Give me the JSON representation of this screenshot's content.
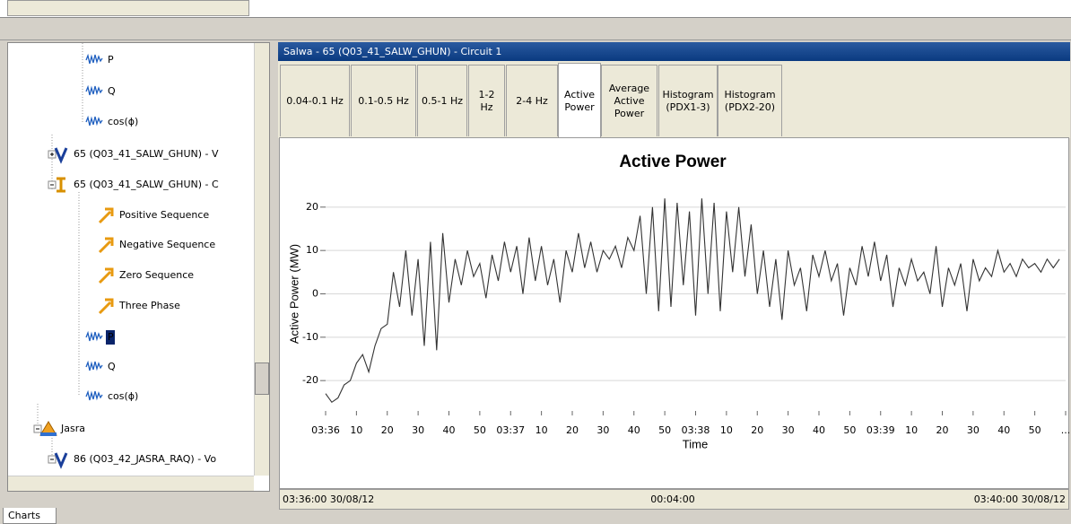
{
  "tree": {
    "items": [
      {
        "label": "P"
      },
      {
        "label": "Q"
      },
      {
        "label": "cos(ϕ)"
      },
      {
        "label": "65 (Q03_41_SALW_GHUN) - V"
      },
      {
        "label": "65 (Q03_41_SALW_GHUN) - C"
      },
      {
        "label": "Positive Sequence"
      },
      {
        "label": "Negative Sequence"
      },
      {
        "label": "Zero Sequence"
      },
      {
        "label": "Three Phase"
      },
      {
        "label": "P"
      },
      {
        "label": "Q"
      },
      {
        "label": "cos(ϕ)"
      },
      {
        "label": "Jasra"
      },
      {
        "label": "86 (Q03_42_JASRA_RAQ) - Vo"
      }
    ]
  },
  "panel_title": "Salwa - 65 (Q03_41_SALW_GHUN) - Circuit 1",
  "tabs": [
    "0.04-0.1 Hz",
    "0.1-0.5 Hz",
    "0.5-1 Hz",
    "1-2 Hz",
    "2-4 Hz",
    "Active Power",
    "Average Active Power",
    "Histogram (PDX1-3)",
    "Histogram (PDX2-20)"
  ],
  "chart_data": {
    "type": "line",
    "title": "Active Power",
    "xlabel": "Time",
    "ylabel": "Active Power (MW)",
    "color": "#333333",
    "grid": true,
    "x": [
      0,
      2,
      4,
      6,
      8,
      10,
      12,
      14,
      16,
      18,
      20,
      22,
      24,
      26,
      28,
      30,
      32,
      34,
      36,
      38,
      40,
      42,
      44,
      46,
      48,
      50,
      52,
      54,
      56,
      58,
      60,
      62,
      64,
      66,
      68,
      70,
      72,
      74,
      76,
      78,
      80,
      82,
      84,
      86,
      88,
      90,
      92,
      94,
      96,
      98,
      100,
      102,
      104,
      106,
      108,
      110,
      112,
      114,
      116,
      118,
      120,
      122,
      124,
      126,
      128,
      130,
      132,
      134,
      136,
      138,
      140,
      142,
      144,
      146,
      148,
      150,
      152,
      154,
      156,
      158,
      160,
      162,
      164,
      166,
      168,
      170,
      172,
      174,
      176,
      178,
      180,
      182,
      184,
      186,
      188,
      190,
      192,
      194,
      196,
      198,
      200,
      202,
      204,
      206,
      208,
      210,
      212,
      214,
      216,
      218,
      220,
      222,
      224,
      226,
      228,
      230,
      232,
      234,
      236,
      238
    ],
    "values": [
      -23,
      -25,
      -24,
      -21,
      -20,
      -16,
      -14,
      -18,
      -12,
      -8,
      -7,
      5,
      -3,
      10,
      -5,
      8,
      -12,
      12,
      -13,
      14,
      -2,
      8,
      2,
      10,
      4,
      7,
      -1,
      9,
      3,
      12,
      5,
      11,
      0,
      13,
      3,
      11,
      2,
      8,
      -2,
      10,
      5,
      14,
      6,
      12,
      5,
      10,
      8,
      11,
      6,
      13,
      10,
      18,
      0,
      20,
      -4,
      22,
      -3,
      21,
      2,
      19,
      -5,
      22,
      0,
      21,
      -4,
      19,
      5,
      20,
      4,
      16,
      0,
      10,
      -3,
      8,
      -6,
      10,
      2,
      6,
      -4,
      9,
      4,
      10,
      3,
      7,
      -5,
      6,
      2,
      11,
      4,
      12,
      3,
      9,
      -3,
      6,
      2,
      8,
      3,
      5,
      0,
      11,
      -3,
      6,
      2,
      7,
      -4,
      8,
      3,
      6,
      4,
      10,
      5,
      7,
      4,
      8,
      6,
      7,
      5,
      8,
      6,
      8
    ],
    "xlim": [
      0,
      240
    ],
    "ylim": [
      -27,
      27
    ],
    "xticks": [
      {
        "value": 0,
        "label": "03:36"
      },
      10,
      20,
      30,
      40,
      50,
      {
        "value": 60,
        "label": "03:37"
      },
      {
        "value": 70,
        "label": "10"
      },
      {
        "value": 80,
        "label": "20"
      },
      {
        "value": 90,
        "label": "30"
      },
      {
        "value": 100,
        "label": "40"
      },
      {
        "value": 110,
        "label": "50"
      },
      {
        "value": 120,
        "label": "03:38"
      },
      {
        "value": 130,
        "label": "10"
      },
      {
        "value": 140,
        "label": "20"
      },
      {
        "value": 150,
        "label": "30"
      },
      {
        "value": 160,
        "label": "40"
      },
      {
        "value": 170,
        "label": "50"
      },
      {
        "value": 180,
        "label": "03:39"
      },
      {
        "value": 190,
        "label": "10"
      },
      {
        "value": 200,
        "label": "20"
      },
      {
        "value": 210,
        "label": "30"
      },
      {
        "value": 220,
        "label": "40"
      },
      {
        "value": 230,
        "label": "50"
      },
      {
        "value": 240,
        "label": "..."
      }
    ],
    "yticks": [
      -20,
      -10,
      0,
      10,
      20
    ]
  },
  "status": {
    "start": "03:36:00 30/08/12",
    "duration": "00:04:00",
    "end": "03:40:00 30/08/12"
  },
  "bottom_tab": "Charts"
}
